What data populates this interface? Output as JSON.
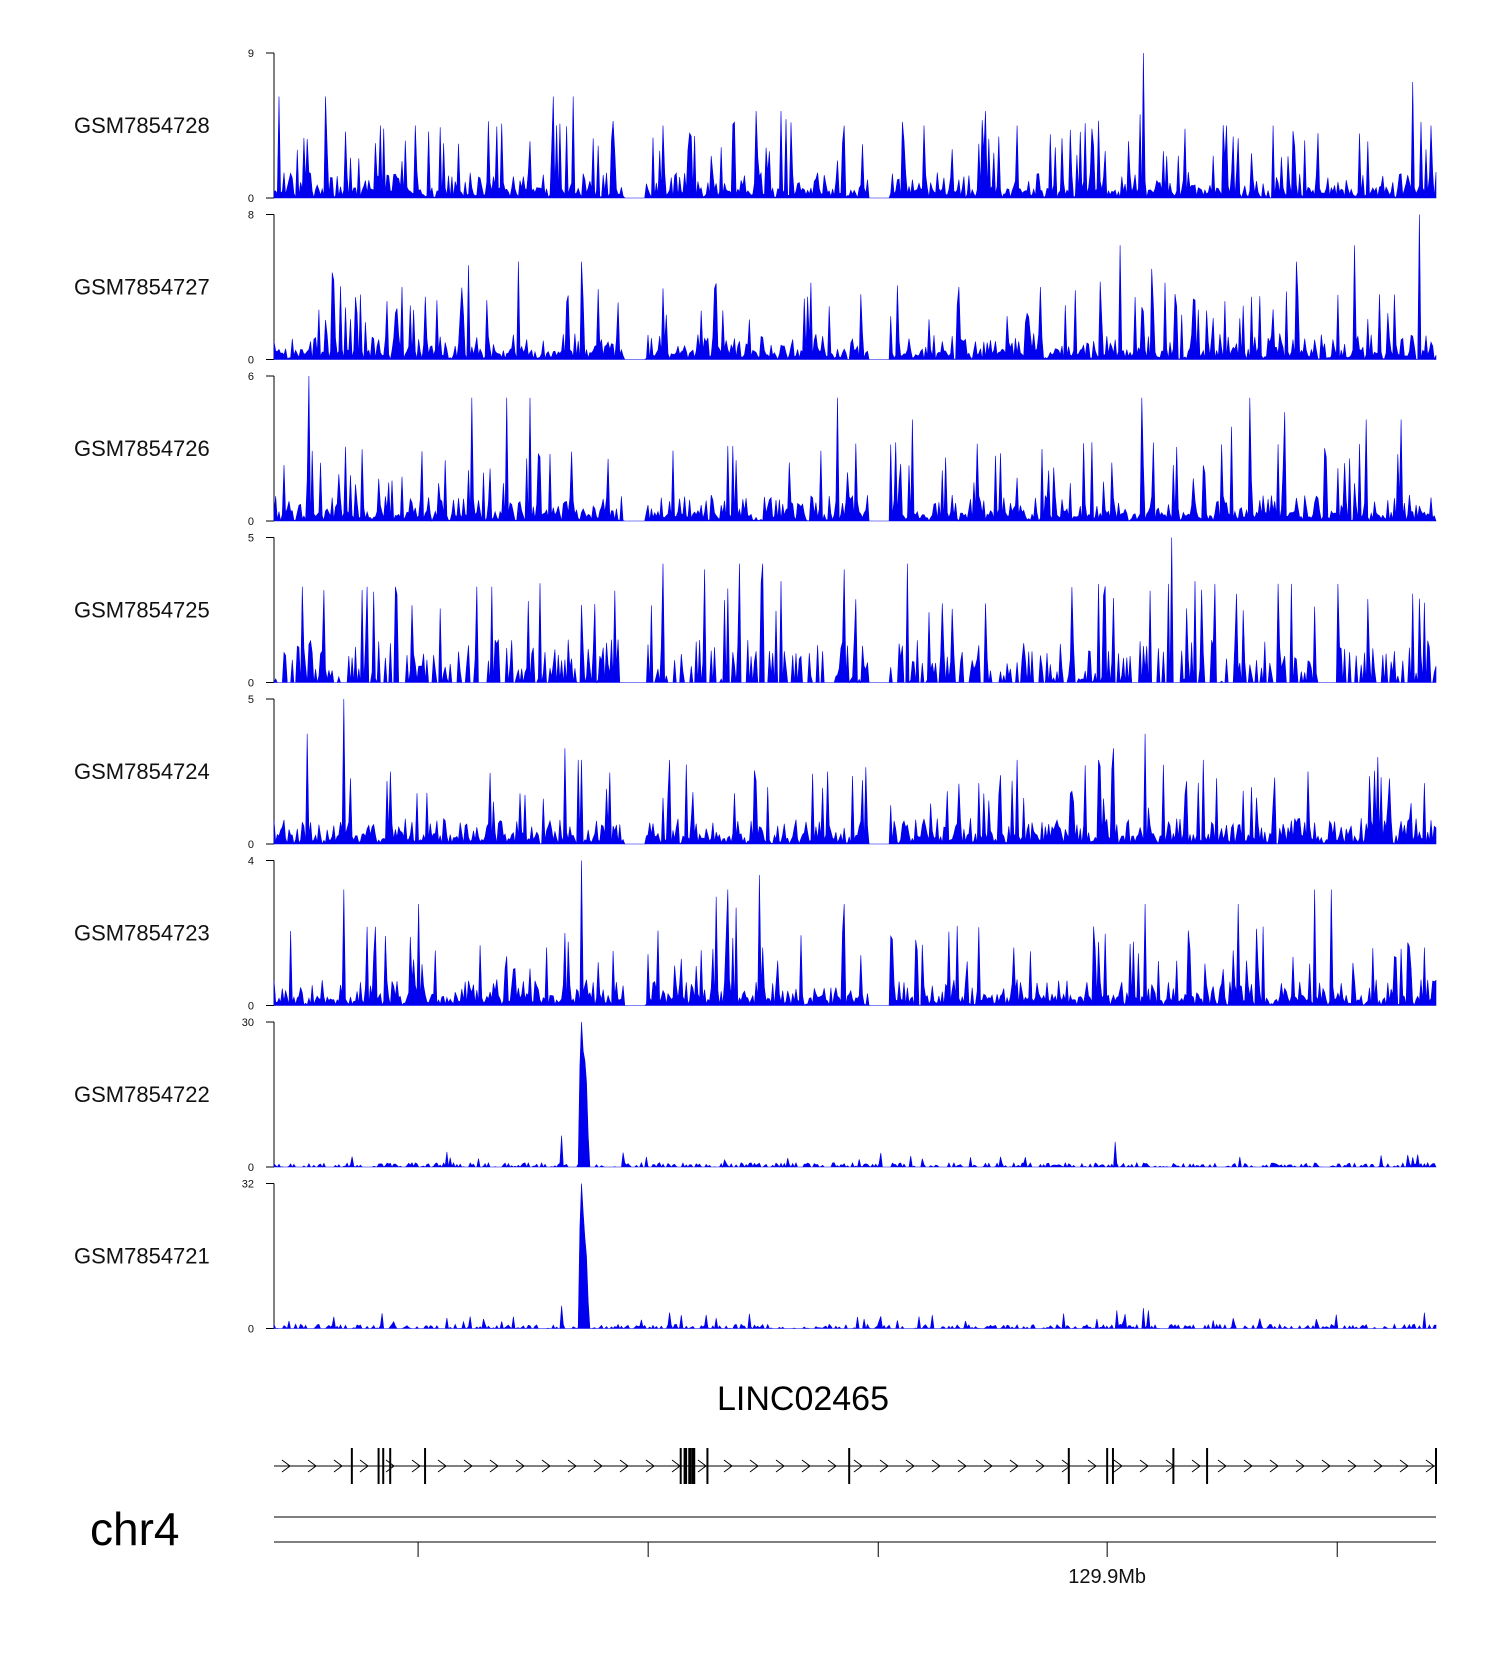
{
  "chart_data": {
    "type": "area",
    "chromosome": "chr4",
    "gene": {
      "name": "LINC02465",
      "strand": "+",
      "exons": [
        0.067,
        0.09,
        0.094,
        0.1,
        0.13,
        0.35,
        0.354,
        0.358,
        0.361,
        0.373,
        0.495,
        0.684,
        0.717,
        0.722,
        0.774,
        0.803,
        1.0
      ]
    },
    "genome_axis": {
      "tick_positions": [
        0.124,
        0.322,
        0.52,
        0.717,
        0.915
      ],
      "labeled_tick": {
        "position": 0.717,
        "label": "129.9Mb"
      }
    },
    "series": [
      {
        "name": "GSM7854728",
        "ymax": 9,
        "ymin": 0,
        "color": "#0000ee",
        "profile": "noisy",
        "peaks": [
          [
            0.005,
            6.3
          ],
          [
            0.045,
            6.3
          ],
          [
            0.092,
            4.5
          ],
          [
            0.122,
            4.5
          ],
          [
            0.24,
            6.3
          ],
          [
            0.258,
            6.3
          ],
          [
            0.335,
            4.5
          ],
          [
            0.415,
            5.4
          ],
          [
            0.437,
            5.4
          ],
          [
            0.49,
            4.5
          ],
          [
            0.56,
            4.5
          ],
          [
            0.612,
            5.4
          ],
          [
            0.64,
            4.5
          ],
          [
            0.71,
            4.8
          ],
          [
            0.745,
            5.2
          ],
          [
            0.748,
            9.0
          ],
          [
            0.82,
            4.5
          ],
          [
            0.86,
            4.5
          ],
          [
            0.98,
            7.2
          ],
          [
            0.995,
            4.5
          ]
        ]
      },
      {
        "name": "GSM7854727",
        "ymax": 8,
        "ymin": 0,
        "color": "#0000ee",
        "profile": "noisy",
        "peaks": [
          [
            0.05,
            4.8
          ],
          [
            0.168,
            5.2
          ],
          [
            0.21,
            5.4
          ],
          [
            0.265,
            5.4
          ],
          [
            0.38,
            4.2
          ],
          [
            0.505,
            3.6
          ],
          [
            0.59,
            4.0
          ],
          [
            0.66,
            4.0
          ],
          [
            0.728,
            6.3
          ],
          [
            0.755,
            5.0
          ],
          [
            0.88,
            5.4
          ],
          [
            0.93,
            6.3
          ],
          [
            0.985,
            8.0
          ]
        ]
      },
      {
        "name": "GSM7854726",
        "ymax": 6,
        "ymin": 0,
        "color": "#0000ee",
        "profile": "noisy",
        "peaks": [
          [
            0.03,
            6.0
          ],
          [
            0.17,
            5.1
          ],
          [
            0.2,
            5.1
          ],
          [
            0.22,
            5.1
          ],
          [
            0.485,
            5.1
          ],
          [
            0.55,
            4.2
          ],
          [
            0.747,
            5.1
          ],
          [
            0.84,
            5.1
          ],
          [
            0.824,
            3.9
          ],
          [
            0.87,
            4.5
          ],
          [
            0.94,
            4.2
          ],
          [
            0.97,
            4.2
          ]
        ]
      },
      {
        "name": "GSM7854725",
        "ymax": 5,
        "ymin": 0,
        "color": "#0000ee",
        "profile": "spiky",
        "peaks": [
          [
            0.025,
            3.3
          ],
          [
            0.08,
            3.3
          ],
          [
            0.105,
            3.3
          ],
          [
            0.175,
            3.3
          ],
          [
            0.188,
            3.3
          ],
          [
            0.335,
            4.1
          ],
          [
            0.37,
            3.9
          ],
          [
            0.4,
            4.1
          ],
          [
            0.42,
            4.1
          ],
          [
            0.49,
            3.9
          ],
          [
            0.545,
            4.1
          ],
          [
            0.71,
            3.4
          ],
          [
            0.77,
            3.4
          ],
          [
            0.772,
            5.0
          ],
          [
            0.81,
            3.4
          ],
          [
            0.875,
            3.4
          ],
          [
            0.915,
            3.4
          ]
        ]
      },
      {
        "name": "GSM7854724",
        "ymax": 5,
        "ymin": 0,
        "color": "#0000ee",
        "profile": "noisy",
        "peaks": [
          [
            0.028,
            3.8
          ],
          [
            0.06,
            5.0
          ],
          [
            0.1,
            2.5
          ],
          [
            0.25,
            3.3
          ],
          [
            0.262,
            2.9
          ],
          [
            0.265,
            2.9
          ],
          [
            0.34,
            2.9
          ],
          [
            0.477,
            2.5
          ],
          [
            0.64,
            2.9
          ],
          [
            0.71,
            2.9
          ],
          [
            0.722,
            3.3
          ],
          [
            0.75,
            3.8
          ],
          [
            0.8,
            2.9
          ],
          [
            0.89,
            2.5
          ],
          [
            0.95,
            3.0
          ],
          [
            0.99,
            2.1
          ]
        ]
      },
      {
        "name": "GSM7854723",
        "ymax": 4,
        "ymin": 0,
        "color": "#0000ee",
        "profile": "noisy",
        "peaks": [
          [
            0.06,
            3.2
          ],
          [
            0.125,
            2.8
          ],
          [
            0.25,
            2.0
          ],
          [
            0.265,
            4.0
          ],
          [
            0.38,
            3.0
          ],
          [
            0.39,
            3.2
          ],
          [
            0.398,
            2.7
          ],
          [
            0.418,
            3.6
          ],
          [
            0.49,
            2.8
          ],
          [
            0.75,
            2.8
          ],
          [
            0.83,
            2.8
          ],
          [
            0.895,
            3.2
          ],
          [
            0.91,
            3.2
          ],
          [
            0.99,
            1.6
          ]
        ]
      },
      {
        "name": "GSM7854722",
        "ymax": 30,
        "ymin": 0,
        "color": "#0000ee",
        "profile": "flat",
        "peaks": [
          [
            0.248,
            6.5
          ],
          [
            0.264,
            27.0
          ],
          [
            0.265,
            30.0
          ],
          [
            0.268,
            22.0
          ],
          [
            0.724,
            5.2
          ],
          [
            0.6,
            2.0
          ],
          [
            0.98,
            2.0
          ]
        ]
      },
      {
        "name": "GSM7854721",
        "ymax": 32,
        "ymin": 0,
        "color": "#0000ee",
        "profile": "flat",
        "peaks": [
          [
            0.248,
            5.0
          ],
          [
            0.264,
            26.0
          ],
          [
            0.265,
            32.0
          ],
          [
            0.268,
            20.0
          ],
          [
            0.34,
            3.5
          ],
          [
            0.725,
            4.0
          ],
          [
            0.748,
            4.5
          ],
          [
            0.752,
            4.0
          ],
          [
            0.99,
            3.5
          ]
        ]
      }
    ]
  }
}
